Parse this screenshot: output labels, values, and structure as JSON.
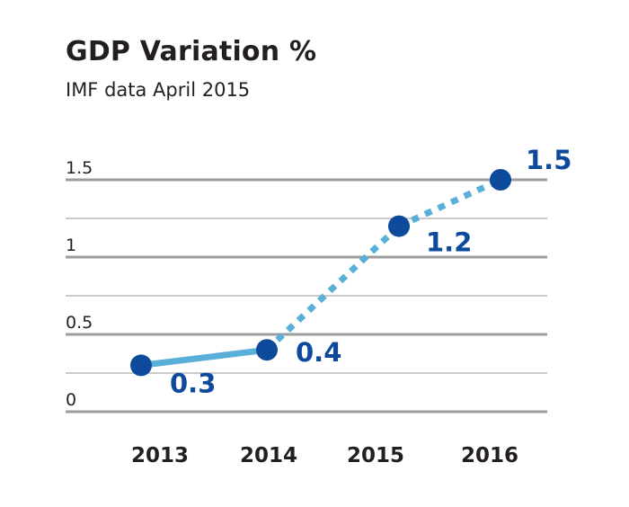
{
  "chart_data": {
    "type": "line",
    "title": "GDP Variation %",
    "subtitle": "IMF data April 2015",
    "categories": [
      "2013",
      "2014",
      "2015",
      "2016"
    ],
    "values": [
      0.3,
      0.4,
      1.2,
      1.5
    ],
    "data_labels": [
      "0.3",
      "0.4",
      "1.2",
      "1.5"
    ],
    "yticks": [
      {
        "value": 0,
        "label": "0"
      },
      {
        "value": 0.5,
        "label": "0.5"
      },
      {
        "value": 1,
        "label": "1"
      },
      {
        "value": 1.5,
        "label": "1.5"
      }
    ],
    "ylim": [
      0,
      1.5
    ],
    "grid": true,
    "segments": [
      {
        "from": "2013",
        "to": "2014",
        "style": "solid"
      },
      {
        "from": "2014",
        "to": "2015",
        "style": "dotted"
      },
      {
        "from": "2015",
        "to": "2016",
        "style": "dotted"
      }
    ],
    "colors": {
      "line": "#5aafd9",
      "point": "#0d4a9c",
      "label": "#0d4a9c",
      "grid": "#a0a0a0",
      "text": "#231f20"
    }
  }
}
